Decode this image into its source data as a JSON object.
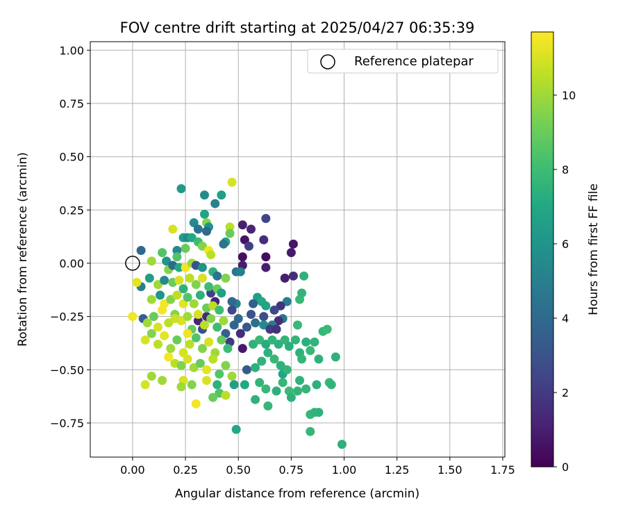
{
  "chart_data": {
    "type": "scatter",
    "title": "FOV centre drift starting at 2025/04/27 06:35:39",
    "xlabel": "Angular distance from reference (arcmin)",
    "ylabel": "Rotation from reference (arcmin)",
    "xlim": [
      -0.2,
      1.76
    ],
    "ylim": [
      -0.91,
      1.04
    ],
    "xticks": [
      0.0,
      0.25,
      0.5,
      0.75,
      1.0,
      1.25,
      1.5,
      1.75
    ],
    "xtick_labels": [
      "0.00",
      "0.25",
      "0.50",
      "0.75",
      "1.00",
      "1.25",
      "1.50",
      "1.75"
    ],
    "yticks": [
      -0.75,
      -0.5,
      -0.25,
      0.0,
      0.25,
      0.5,
      0.75,
      1.0
    ],
    "ytick_labels": [
      "−0.75",
      "−0.50",
      "−0.25",
      "0.00",
      "0.25",
      "0.50",
      "0.75",
      "1.00"
    ],
    "grid": true,
    "legend": {
      "placement": "upper-right",
      "entries": [
        "Reference platepar"
      ]
    },
    "reference_point": {
      "x": 0.0,
      "y": 0.0,
      "label": "Reference platepar"
    },
    "colorbar": {
      "label": "Hours from first FF file",
      "colormap": "viridis",
      "range": [
        0,
        11.7
      ],
      "ticks": [
        0,
        2,
        4,
        6,
        8,
        10
      ],
      "tick_labels": [
        "0",
        "2",
        "4",
        "6",
        "8",
        "10"
      ]
    },
    "points": [
      {
        "x": 0.52,
        "y": 0.18,
        "h": 1.0
      },
      {
        "x": 0.56,
        "y": 0.16,
        "h": 1.2
      },
      {
        "x": 0.53,
        "y": 0.11,
        "h": 0.6
      },
      {
        "x": 0.52,
        "y": 0.03,
        "h": 0.5
      },
      {
        "x": 0.52,
        "y": -0.01,
        "h": 0.9
      },
      {
        "x": 0.55,
        "y": 0.08,
        "h": 2.2
      },
      {
        "x": 0.63,
        "y": 0.21,
        "h": 2.4
      },
      {
        "x": 0.62,
        "y": 0.11,
        "h": 1.5
      },
      {
        "x": 0.63,
        "y": 0.03,
        "h": 0.4
      },
      {
        "x": 0.63,
        "y": -0.02,
        "h": 1.0
      },
      {
        "x": 0.76,
        "y": 0.09,
        "h": 0.7
      },
      {
        "x": 0.75,
        "y": 0.05,
        "h": 0.8
      },
      {
        "x": 0.72,
        "y": -0.07,
        "h": 1.0
      },
      {
        "x": 0.76,
        "y": -0.06,
        "h": 1.5
      },
      {
        "x": 0.81,
        "y": -0.06,
        "h": 7.5
      },
      {
        "x": 0.79,
        "y": -0.17,
        "h": 7.8
      },
      {
        "x": 0.8,
        "y": -0.14,
        "h": 7.6
      },
      {
        "x": 0.73,
        "y": -0.18,
        "h": 5.0
      },
      {
        "x": 0.7,
        "y": -0.2,
        "h": 1.8
      },
      {
        "x": 0.67,
        "y": -0.22,
        "h": 2.5
      },
      {
        "x": 0.71,
        "y": -0.26,
        "h": 4.5
      },
      {
        "x": 0.69,
        "y": -0.27,
        "h": 1.5
      },
      {
        "x": 0.66,
        "y": -0.29,
        "h": 4.8
      },
      {
        "x": 0.62,
        "y": -0.25,
        "h": 2.8
      },
      {
        "x": 0.59,
        "y": -0.16,
        "h": 6.5
      },
      {
        "x": 0.61,
        "y": -0.18,
        "h": 7.0
      },
      {
        "x": 0.63,
        "y": -0.2,
        "h": 6.8
      },
      {
        "x": 0.57,
        "y": -0.19,
        "h": 3.5
      },
      {
        "x": 0.56,
        "y": -0.24,
        "h": 3.0
      },
      {
        "x": 0.58,
        "y": -0.28,
        "h": 4.2
      },
      {
        "x": 0.62,
        "y": -0.29,
        "h": 5.5
      },
      {
        "x": 0.65,
        "y": -0.31,
        "h": 2.0
      },
      {
        "x": 0.68,
        "y": -0.31,
        "h": 1.7
      },
      {
        "x": 0.54,
        "y": -0.3,
        "h": 3.2
      },
      {
        "x": 0.51,
        "y": -0.33,
        "h": 1.5
      },
      {
        "x": 0.5,
        "y": -0.26,
        "h": 4.0
      },
      {
        "x": 0.49,
        "y": -0.19,
        "h": 5.2
      },
      {
        "x": 0.47,
        "y": -0.22,
        "h": 2.5
      },
      {
        "x": 0.48,
        "y": -0.29,
        "h": 3.8
      },
      {
        "x": 0.52,
        "y": -0.4,
        "h": 0.8
      },
      {
        "x": 0.54,
        "y": -0.5,
        "h": 3.3
      },
      {
        "x": 0.46,
        "y": -0.37,
        "h": 2.0
      },
      {
        "x": 0.44,
        "y": -0.33,
        "h": 3.5
      },
      {
        "x": 0.39,
        "y": -0.18,
        "h": 1.2
      },
      {
        "x": 0.37,
        "y": -0.14,
        "h": 2.2
      },
      {
        "x": 0.35,
        "y": -0.25,
        "h": 1.4
      },
      {
        "x": 0.33,
        "y": -0.31,
        "h": 2.8
      },
      {
        "x": 0.31,
        "y": -0.27,
        "h": 1.2
      },
      {
        "x": 0.49,
        "y": -0.04,
        "h": 4.5
      },
      {
        "x": 0.51,
        "y": -0.04,
        "h": 5.0
      },
      {
        "x": 0.47,
        "y": -0.18,
        "h": 4.0
      },
      {
        "x": 0.57,
        "y": -0.38,
        "h": 7.5
      },
      {
        "x": 0.6,
        "y": -0.36,
        "h": 7.8
      },
      {
        "x": 0.63,
        "y": -0.38,
        "h": 7.2
      },
      {
        "x": 0.66,
        "y": -0.36,
        "h": 7.6
      },
      {
        "x": 0.69,
        "y": -0.38,
        "h": 7.4
      },
      {
        "x": 0.72,
        "y": -0.36,
        "h": 7.7
      },
      {
        "x": 0.74,
        "y": -0.39,
        "h": 7.3
      },
      {
        "x": 0.64,
        "y": -0.42,
        "h": 7.5
      },
      {
        "x": 0.67,
        "y": -0.45,
        "h": 7.8
      },
      {
        "x": 0.61,
        "y": -0.46,
        "h": 7.6
      },
      {
        "x": 0.58,
        "y": -0.49,
        "h": 7.4
      },
      {
        "x": 0.71,
        "y": -0.52,
        "h": 6.8
      },
      {
        "x": 0.73,
        "y": -0.5,
        "h": 7.7
      },
      {
        "x": 0.7,
        "y": -0.48,
        "h": 7.5
      },
      {
        "x": 0.77,
        "y": -0.36,
        "h": 7.6
      },
      {
        "x": 0.78,
        "y": -0.29,
        "h": 7.8
      },
      {
        "x": 0.79,
        "y": -0.42,
        "h": 7.5
      },
      {
        "x": 0.8,
        "y": -0.45,
        "h": 7.7
      },
      {
        "x": 0.82,
        "y": -0.37,
        "h": 7.4
      },
      {
        "x": 0.84,
        "y": -0.41,
        "h": 7.8
      },
      {
        "x": 0.86,
        "y": -0.37,
        "h": 7.6
      },
      {
        "x": 0.88,
        "y": -0.45,
        "h": 7.5
      },
      {
        "x": 0.9,
        "y": -0.32,
        "h": 7.7
      },
      {
        "x": 0.92,
        "y": -0.31,
        "h": 7.9
      },
      {
        "x": 0.96,
        "y": -0.44,
        "h": 7.5
      },
      {
        "x": 0.93,
        "y": -0.56,
        "h": 7.8
      },
      {
        "x": 0.94,
        "y": -0.57,
        "h": 7.6
      },
      {
        "x": 0.87,
        "y": -0.57,
        "h": 7.4
      },
      {
        "x": 0.82,
        "y": -0.59,
        "h": 7.7
      },
      {
        "x": 0.79,
        "y": -0.55,
        "h": 7.5
      },
      {
        "x": 0.78,
        "y": -0.6,
        "h": 7.6
      },
      {
        "x": 0.74,
        "y": -0.6,
        "h": 7.9
      },
      {
        "x": 0.75,
        "y": -0.63,
        "h": 7.5
      },
      {
        "x": 0.71,
        "y": -0.56,
        "h": 7.7
      },
      {
        "x": 0.68,
        "y": -0.6,
        "h": 7.4
      },
      {
        "x": 0.63,
        "y": -0.59,
        "h": 7.8
      },
      {
        "x": 0.6,
        "y": -0.56,
        "h": 7.6
      },
      {
        "x": 0.58,
        "y": -0.64,
        "h": 7.5
      },
      {
        "x": 0.64,
        "y": -0.67,
        "h": 7.7
      },
      {
        "x": 0.84,
        "y": -0.71,
        "h": 7.8
      },
      {
        "x": 0.86,
        "y": -0.7,
        "h": 7.6
      },
      {
        "x": 0.88,
        "y": -0.7,
        "h": 7.5
      },
      {
        "x": 0.84,
        "y": -0.79,
        "h": 7.7
      },
      {
        "x": 0.99,
        "y": -0.85,
        "h": 7.4
      },
      {
        "x": 0.49,
        "y": -0.78,
        "h": 7.0
      },
      {
        "x": 0.04,
        "y": 0.06,
        "h": 4.0
      },
      {
        "x": 0.23,
        "y": 0.35,
        "h": 6.2
      },
      {
        "x": 0.34,
        "y": 0.32,
        "h": 5.5
      },
      {
        "x": 0.42,
        "y": 0.32,
        "h": 6.5
      },
      {
        "x": 0.39,
        "y": 0.28,
        "h": 5.0
      },
      {
        "x": 0.34,
        "y": 0.23,
        "h": 6.8
      },
      {
        "x": 0.47,
        "y": 0.38,
        "h": 11.0
      },
      {
        "x": 0.29,
        "y": 0.19,
        "h": 5.5
      },
      {
        "x": 0.31,
        "y": 0.16,
        "h": 4.5
      },
      {
        "x": 0.35,
        "y": 0.19,
        "h": 9.5
      },
      {
        "x": 0.36,
        "y": 0.17,
        "h": 6.0
      },
      {
        "x": 0.35,
        "y": 0.15,
        "h": 4.0
      },
      {
        "x": 0.46,
        "y": 0.17,
        "h": 10.5
      },
      {
        "x": 0.46,
        "y": 0.14,
        "h": 9.0
      },
      {
        "x": 0.44,
        "y": 0.1,
        "h": 6.5
      },
      {
        "x": 0.43,
        "y": 0.09,
        "h": 4.5
      },
      {
        "x": 0.19,
        "y": 0.16,
        "h": 11.0
      },
      {
        "x": 0.24,
        "y": 0.12,
        "h": 6.5
      },
      {
        "x": 0.26,
        "y": 0.12,
        "h": 5.5
      },
      {
        "x": 0.28,
        "y": 0.12,
        "h": 7.0
      },
      {
        "x": 0.31,
        "y": 0.1,
        "h": 8.0
      },
      {
        "x": 0.33,
        "y": 0.08,
        "h": 9.5
      },
      {
        "x": 0.36,
        "y": 0.06,
        "h": 11.5
      },
      {
        "x": 0.37,
        "y": 0.04,
        "h": 10.5
      },
      {
        "x": 0.25,
        "y": 0.07,
        "h": 9.0
      },
      {
        "x": 0.21,
        "y": 0.06,
        "h": 5.5
      },
      {
        "x": 0.21,
        "y": 0.03,
        "h": 8.5
      },
      {
        "x": 0.14,
        "y": 0.05,
        "h": 8.5
      },
      {
        "x": 0.09,
        "y": 0.01,
        "h": 10.0
      },
      {
        "x": 0.16,
        "y": 0.01,
        "h": 6.0
      },
      {
        "x": 0.17,
        "y": -0.03,
        "h": 9.5
      },
      {
        "x": 0.19,
        "y": -0.01,
        "h": 4.0
      },
      {
        "x": 0.22,
        "y": -0.02,
        "h": 7.0
      },
      {
        "x": 0.25,
        "y": -0.02,
        "h": 11.5
      },
      {
        "x": 0.28,
        "y": 0.0,
        "h": 10.0
      },
      {
        "x": 0.3,
        "y": -0.01,
        "h": 3.0
      },
      {
        "x": 0.33,
        "y": -0.02,
        "h": 6.0
      },
      {
        "x": 0.38,
        "y": -0.04,
        "h": 7.5
      },
      {
        "x": 0.4,
        "y": -0.06,
        "h": 4.5
      },
      {
        "x": 0.44,
        "y": -0.07,
        "h": 9.5
      },
      {
        "x": 0.04,
        "y": -0.11,
        "h": 5.0
      },
      {
        "x": 0.02,
        "y": -0.09,
        "h": 11.2
      },
      {
        "x": 0.08,
        "y": -0.07,
        "h": 6.5
      },
      {
        "x": 0.12,
        "y": -0.1,
        "h": 10.0
      },
      {
        "x": 0.15,
        "y": -0.08,
        "h": 5.5
      },
      {
        "x": 0.19,
        "y": -0.09,
        "h": 9.0
      },
      {
        "x": 0.22,
        "y": -0.08,
        "h": 11.0
      },
      {
        "x": 0.24,
        "y": -0.12,
        "h": 7.5
      },
      {
        "x": 0.27,
        "y": -0.07,
        "h": 10.5
      },
      {
        "x": 0.3,
        "y": -0.1,
        "h": 9.5
      },
      {
        "x": 0.33,
        "y": -0.07,
        "h": 11.0
      },
      {
        "x": 0.36,
        "y": -0.11,
        "h": 8.0
      },
      {
        "x": 0.4,
        "y": -0.12,
        "h": 9.0
      },
      {
        "x": 0.42,
        "y": -0.14,
        "h": 6.5
      },
      {
        "x": 0.09,
        "y": -0.17,
        "h": 10.0
      },
      {
        "x": 0.13,
        "y": -0.15,
        "h": 6.0
      },
      {
        "x": 0.15,
        "y": -0.19,
        "h": 11.5
      },
      {
        "x": 0.18,
        "y": -0.17,
        "h": 9.5
      },
      {
        "x": 0.21,
        "y": -0.15,
        "h": 10.5
      },
      {
        "x": 0.24,
        "y": -0.19,
        "h": 11.2
      },
      {
        "x": 0.26,
        "y": -0.16,
        "h": 8.5
      },
      {
        "x": 0.29,
        "y": -0.19,
        "h": 10.0
      },
      {
        "x": 0.32,
        "y": -0.15,
        "h": 7.5
      },
      {
        "x": 0.35,
        "y": -0.21,
        "h": 9.0
      },
      {
        "x": 0.38,
        "y": -0.2,
        "h": 10.5
      },
      {
        "x": 0.41,
        "y": -0.22,
        "h": 8.0
      },
      {
        "x": 0.0,
        "y": -0.25,
        "h": 11.5
      },
      {
        "x": 0.05,
        "y": -0.26,
        "h": 3.5
      },
      {
        "x": 0.07,
        "y": -0.28,
        "h": 10.0
      },
      {
        "x": 0.1,
        "y": -0.25,
        "h": 9.0
      },
      {
        "x": 0.12,
        "y": -0.3,
        "h": 11.0
      },
      {
        "x": 0.14,
        "y": -0.22,
        "h": 11.5
      },
      {
        "x": 0.17,
        "y": -0.28,
        "h": 10.5
      },
      {
        "x": 0.2,
        "y": -0.24,
        "h": 9.5
      },
      {
        "x": 0.23,
        "y": -0.27,
        "h": 11.0
      },
      {
        "x": 0.26,
        "y": -0.25,
        "h": 10.0
      },
      {
        "x": 0.28,
        "y": -0.31,
        "h": 9.0
      },
      {
        "x": 0.31,
        "y": -0.24,
        "h": 11.0
      },
      {
        "x": 0.34,
        "y": -0.29,
        "h": 10.5
      },
      {
        "x": 0.37,
        "y": -0.26,
        "h": 9.5
      },
      {
        "x": 0.4,
        "y": -0.3,
        "h": 8.0
      },
      {
        "x": 0.43,
        "y": -0.27,
        "h": 10.0
      },
      {
        "x": 0.06,
        "y": -0.36,
        "h": 11.0
      },
      {
        "x": 0.09,
        "y": -0.33,
        "h": 9.5
      },
      {
        "x": 0.12,
        "y": -0.38,
        "h": 10.5
      },
      {
        "x": 0.15,
        "y": -0.34,
        "h": 11.2
      },
      {
        "x": 0.18,
        "y": -0.4,
        "h": 10.0
      },
      {
        "x": 0.21,
        "y": -0.36,
        "h": 9.0
      },
      {
        "x": 0.24,
        "y": -0.42,
        "h": 11.0
      },
      {
        "x": 0.27,
        "y": -0.38,
        "h": 10.5
      },
      {
        "x": 0.3,
        "y": -0.35,
        "h": 8.5
      },
      {
        "x": 0.33,
        "y": -0.4,
        "h": 9.5
      },
      {
        "x": 0.36,
        "y": -0.37,
        "h": 11.0
      },
      {
        "x": 0.39,
        "y": -0.42,
        "h": 10.0
      },
      {
        "x": 0.42,
        "y": -0.36,
        "h": 9.0
      },
      {
        "x": 0.45,
        "y": -0.4,
        "h": 8.0
      },
      {
        "x": 0.17,
        "y": -0.44,
        "h": 11.5
      },
      {
        "x": 0.2,
        "y": -0.47,
        "h": 10.5
      },
      {
        "x": 0.23,
        "y": -0.48,
        "h": 9.5
      },
      {
        "x": 0.26,
        "y": -0.45,
        "h": 11.0
      },
      {
        "x": 0.29,
        "y": -0.49,
        "h": 10.0
      },
      {
        "x": 0.32,
        "y": -0.47,
        "h": 9.0
      },
      {
        "x": 0.35,
        "y": -0.5,
        "h": 11.2
      },
      {
        "x": 0.38,
        "y": -0.45,
        "h": 10.5
      },
      {
        "x": 0.41,
        "y": -0.52,
        "h": 8.5
      },
      {
        "x": 0.44,
        "y": -0.48,
        "h": 9.5
      },
      {
        "x": 0.47,
        "y": -0.53,
        "h": 10.0
      },
      {
        "x": 0.09,
        "y": -0.53,
        "h": 10.0
      },
      {
        "x": 0.06,
        "y": -0.57,
        "h": 11.0
      },
      {
        "x": 0.14,
        "y": -0.55,
        "h": 10.0
      },
      {
        "x": 0.24,
        "y": -0.55,
        "h": 11.0
      },
      {
        "x": 0.23,
        "y": -0.58,
        "h": 10.0
      },
      {
        "x": 0.28,
        "y": -0.57,
        "h": 9.5
      },
      {
        "x": 0.35,
        "y": -0.55,
        "h": 11.0
      },
      {
        "x": 0.4,
        "y": -0.57,
        "h": 7.5
      },
      {
        "x": 0.41,
        "y": -0.61,
        "h": 8.5
      },
      {
        "x": 0.44,
        "y": -0.62,
        "h": 10.5
      },
      {
        "x": 0.38,
        "y": -0.63,
        "h": 9.0
      },
      {
        "x": 0.3,
        "y": -0.66,
        "h": 11.5
      },
      {
        "x": 0.48,
        "y": -0.57,
        "h": 6.5
      },
      {
        "x": 0.53,
        "y": -0.57,
        "h": 7.0
      },
      {
        "x": 0.2,
        "y": -0.26,
        "h": 10.8
      },
      {
        "x": 0.26,
        "y": -0.33,
        "h": 11.4
      }
    ]
  }
}
